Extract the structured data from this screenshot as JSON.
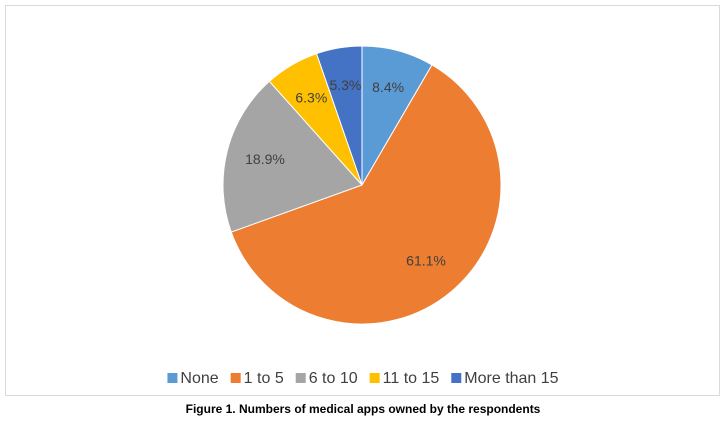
{
  "chart_data": {
    "type": "pie",
    "caption": "Figure 1. Numbers of medical apps owned by the respondents",
    "categories": [
      "None",
      "1 to 5",
      "6 to 10",
      "11 to 15",
      "More than 15"
    ],
    "values": [
      8.4,
      61.1,
      18.9,
      6.3,
      5.3
    ],
    "value_labels": [
      "8.4%",
      "61.1%",
      "18.9%",
      "6.3%",
      "5.3%"
    ],
    "colors": [
      "#5b9bd5",
      "#ed7d31",
      "#a5a5a5",
      "#ffc000",
      "#4472c4"
    ],
    "legend": "bottom"
  }
}
